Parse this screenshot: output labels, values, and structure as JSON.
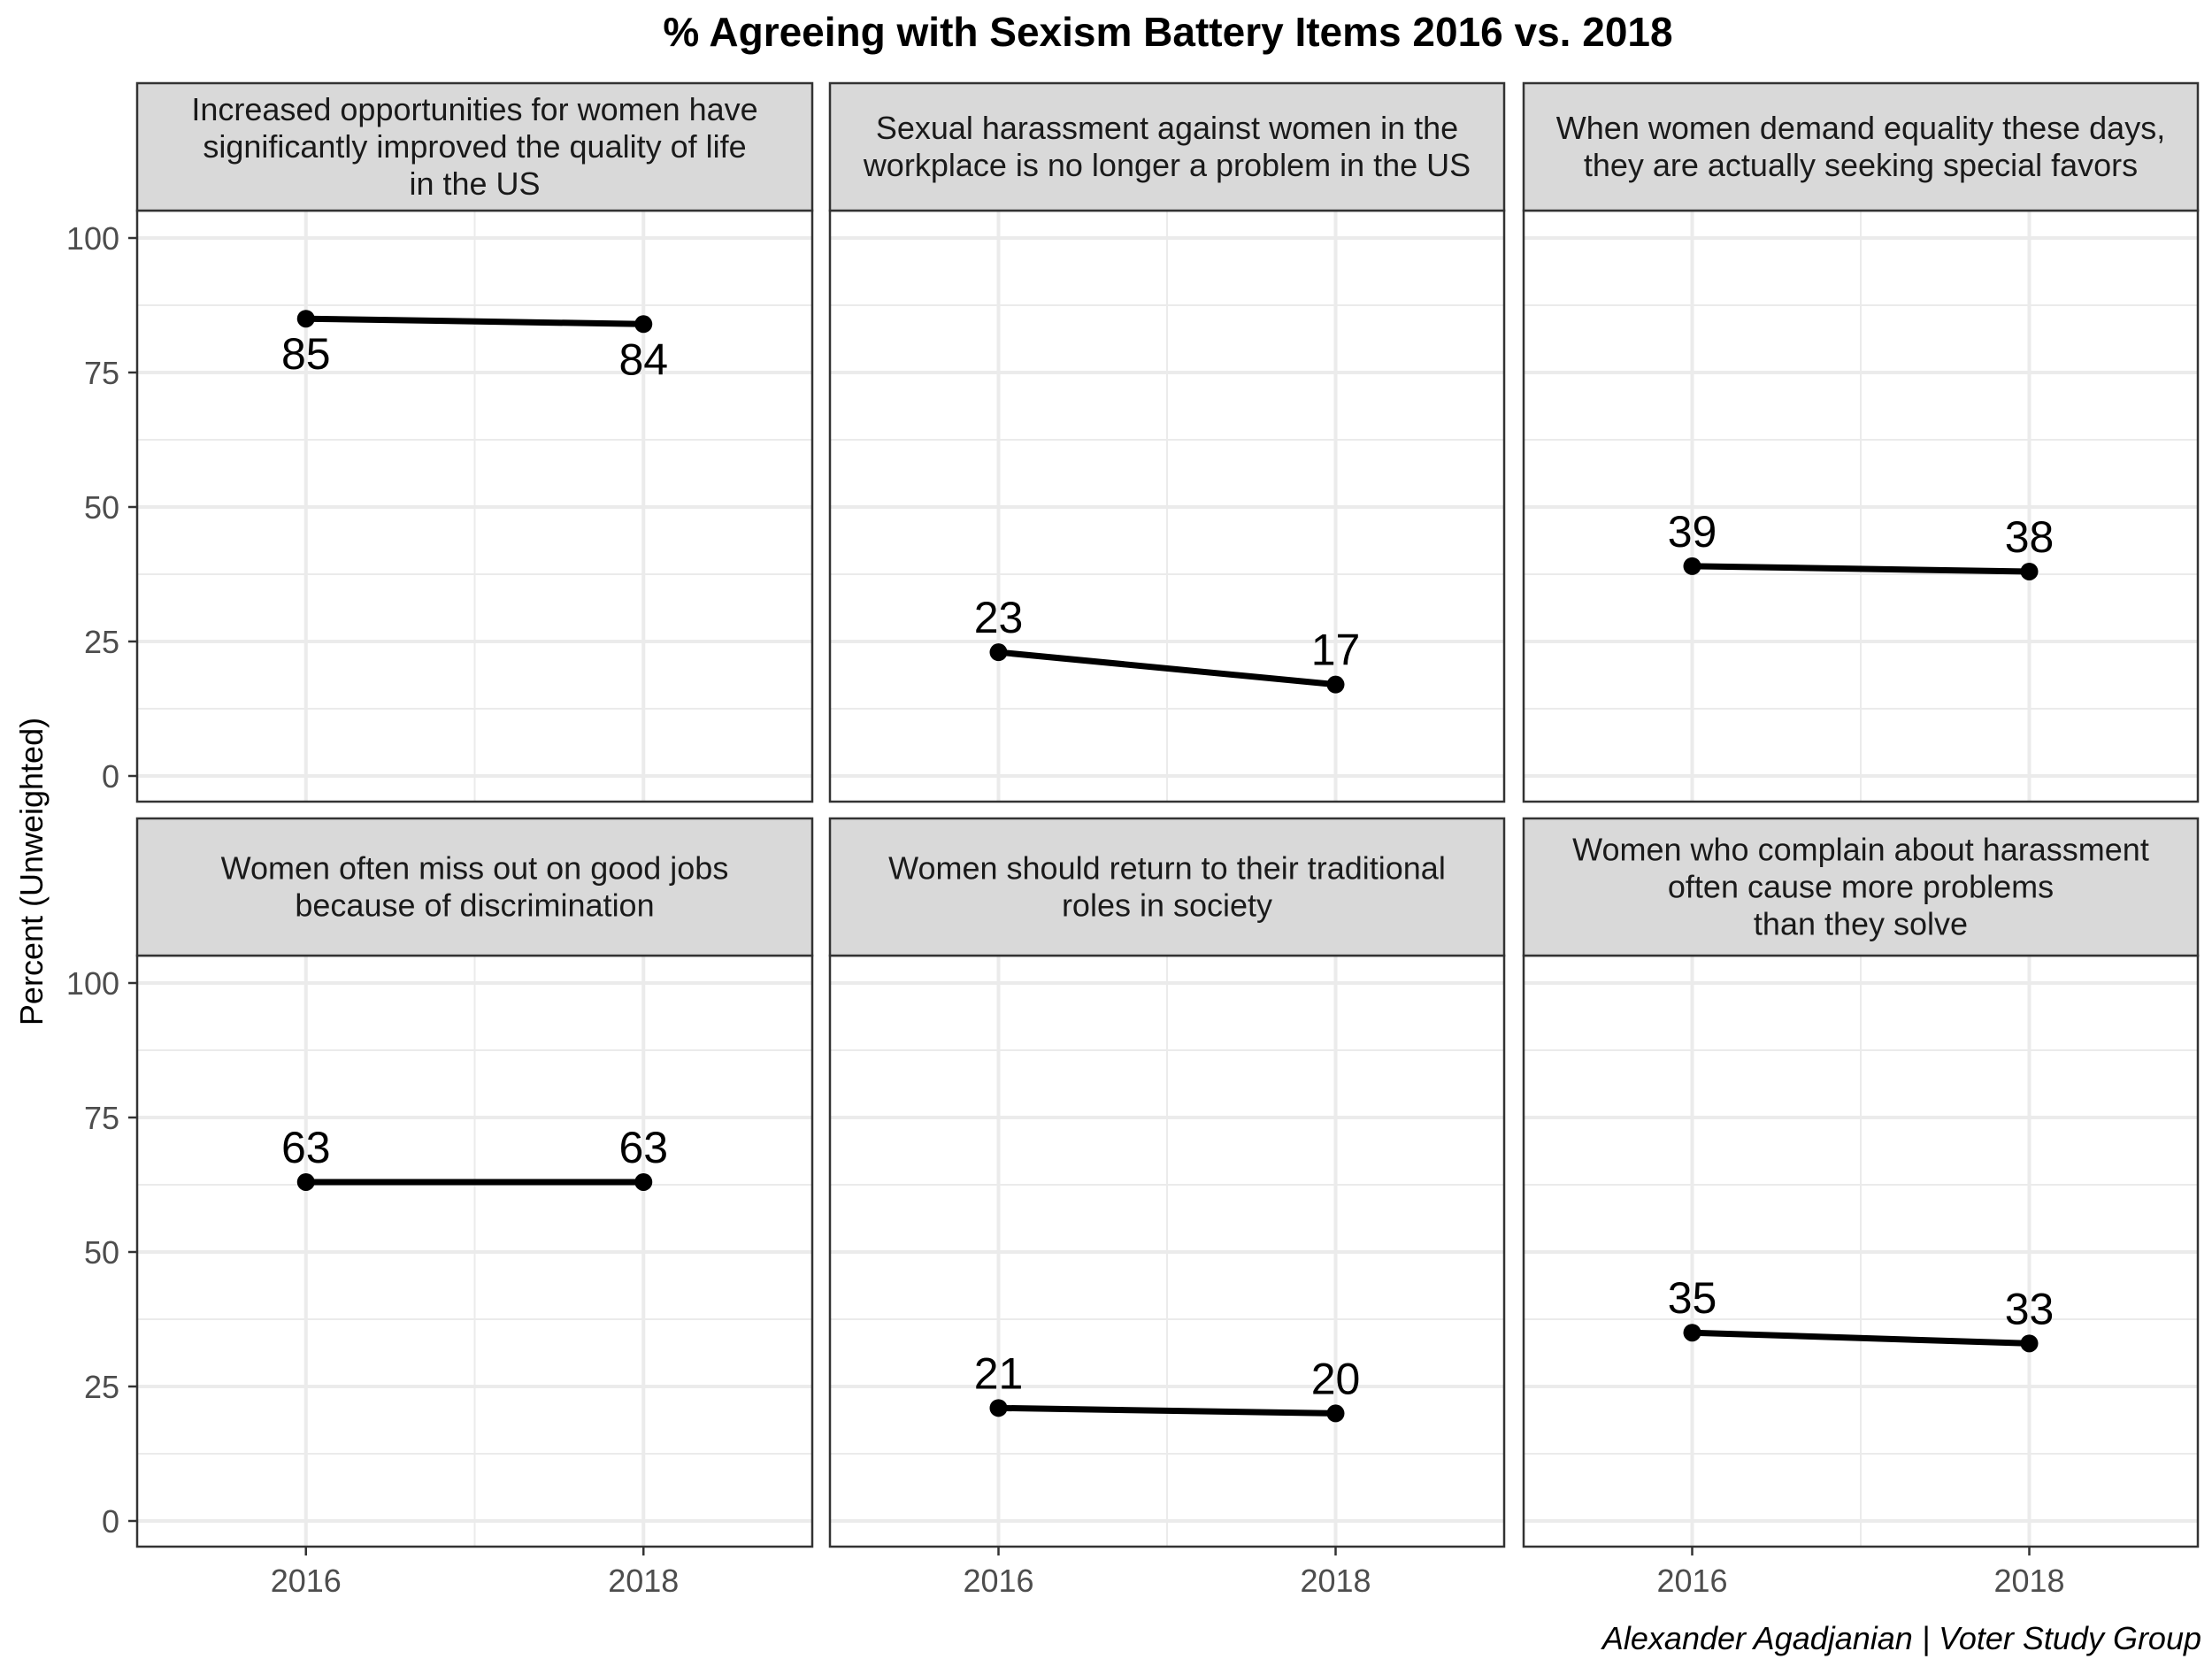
{
  "chart_data": {
    "type": "line",
    "title": "% Agreeing with Sexism Battery Items 2016 vs. 2018",
    "ylabel": "Percent (Unweighted)",
    "caption": "Alexander Agadjanian | Voter Study Group",
    "x": [
      2016,
      2018
    ],
    "x_tick_labels": [
      "2016",
      "2018"
    ],
    "xlim": [
      2015,
      2019
    ],
    "ylim": [
      0,
      100
    ],
    "y_ticks": [
      0,
      25,
      50,
      75,
      100
    ],
    "y_tick_labels": [
      "0",
      "25",
      "50",
      "75",
      "100"
    ],
    "grid": true,
    "line_color": "#000000",
    "strip_color": "#d9d9d9",
    "grid_color": "#ebebeb",
    "panels": [
      {
        "strip_lines": [
          "Increased opportunities for women have",
          "significantly improved the quality of life",
          "in the US"
        ],
        "values": [
          85,
          84
        ],
        "labels": [
          "85",
          "84"
        ],
        "label_position": "below"
      },
      {
        "strip_lines": [
          "Sexual harassment against women in the",
          "workplace is no longer a problem in the US"
        ],
        "values": [
          23,
          17
        ],
        "labels": [
          "23",
          "17"
        ],
        "label_position": "above"
      },
      {
        "strip_lines": [
          "When women demand equality these days,",
          "they are actually seeking special favors"
        ],
        "values": [
          39,
          38
        ],
        "labels": [
          "39",
          "38"
        ],
        "label_position": "above"
      },
      {
        "strip_lines": [
          "Women often miss out on good jobs",
          "because of discrimination"
        ],
        "values": [
          63,
          63
        ],
        "labels": [
          "63",
          "63"
        ],
        "label_position": "above"
      },
      {
        "strip_lines": [
          "Women should return to their traditional",
          "roles in society"
        ],
        "values": [
          21,
          20
        ],
        "labels": [
          "21",
          "20"
        ],
        "label_position": "above"
      },
      {
        "strip_lines": [
          "Women who complain about harassment",
          "often cause more problems",
          "than they solve"
        ],
        "values": [
          35,
          33
        ],
        "labels": [
          "35",
          "33"
        ],
        "label_position": "above"
      }
    ]
  }
}
